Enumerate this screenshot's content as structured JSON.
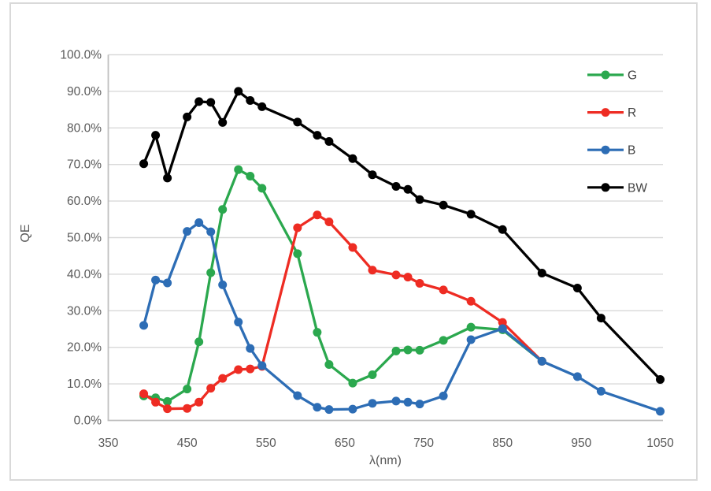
{
  "chart_data": {
    "type": "line",
    "title": "",
    "xlabel": "λ(nm)",
    "ylabel": "QE",
    "grid": true,
    "legend_position": "top-right-vertical",
    "x_axis": {
      "min": 350,
      "max": 1053,
      "ticks": [
        350,
        450,
        550,
        650,
        750,
        850,
        950,
        1050
      ],
      "tick_labels": [
        "350",
        "450",
        "550",
        "650",
        "750",
        "850",
        "950",
        "1050"
      ]
    },
    "y_axis": {
      "min": 0,
      "max": 100,
      "ticks": [
        0,
        10,
        20,
        30,
        40,
        50,
        60,
        70,
        80,
        90,
        100
      ],
      "tick_labels": [
        "0.0%",
        "10.0%",
        "20.0%",
        "30.0%",
        "40.0%",
        "50.0%",
        "60.0%",
        "70.0%",
        "80.0%",
        "90.0%",
        "100.0%"
      ]
    },
    "series": [
      {
        "name": "G",
        "color": "#2BA84E",
        "x": [
          395,
          410,
          425,
          450,
          465,
          480,
          495,
          515,
          530,
          545,
          590,
          615,
          630,
          660,
          685,
          715,
          730,
          745,
          775,
          810,
          850,
          900
        ],
        "values": [
          6.7,
          6.2,
          5.2,
          8.6,
          21.5,
          40.4,
          57.7,
          68.6,
          66.8,
          63.5,
          45.6,
          24.1,
          15.3,
          10.2,
          12.5,
          19.0,
          19.3,
          19.2,
          21.9,
          25.5,
          24.8,
          16.2
        ]
      },
      {
        "name": "R",
        "color": "#EE2C23",
        "x": [
          395,
          410,
          425,
          450,
          465,
          480,
          495,
          515,
          530,
          545,
          590,
          615,
          630,
          660,
          685,
          715,
          730,
          745,
          775,
          810,
          850,
          900
        ],
        "values": [
          7.3,
          5.0,
          3.2,
          3.3,
          5.0,
          8.8,
          11.5,
          13.9,
          14.1,
          14.8,
          52.7,
          56.2,
          54.3,
          47.3,
          41.1,
          39.8,
          39.2,
          37.5,
          35.7,
          32.6,
          26.8,
          16.2
        ]
      },
      {
        "name": "B",
        "color": "#2D6DB5",
        "x": [
          395,
          410,
          425,
          450,
          465,
          480,
          495,
          515,
          530,
          545,
          590,
          615,
          630,
          660,
          685,
          715,
          730,
          745,
          775,
          810,
          850,
          900,
          945,
          975,
          1050
        ],
        "values": [
          26.0,
          38.4,
          37.6,
          51.7,
          54.1,
          51.6,
          37.1,
          26.9,
          19.7,
          15.0,
          6.8,
          3.6,
          3.0,
          3.1,
          4.7,
          5.3,
          5.0,
          4.5,
          6.7,
          22.1,
          25.1,
          16.2,
          12.0,
          8.0,
          2.5
        ]
      },
      {
        "name": "BW",
        "color": "#000000",
        "x": [
          395,
          410,
          425,
          450,
          465,
          480,
          495,
          515,
          530,
          545,
          590,
          615,
          630,
          660,
          685,
          715,
          730,
          745,
          775,
          810,
          850,
          900,
          945,
          975,
          1050
        ],
        "values": [
          70.2,
          78.0,
          66.3,
          83.0,
          87.2,
          87.0,
          81.5,
          90.0,
          87.5,
          85.8,
          81.6,
          78.0,
          76.3,
          71.6,
          67.2,
          64.0,
          63.2,
          60.4,
          58.9,
          56.4,
          52.2,
          40.3,
          36.2,
          28.0,
          11.2
        ]
      }
    ]
  },
  "styles": {
    "grid_color": "#d9d9d9",
    "axis_line_color": "#bfbfbf",
    "tick_text_color": "#595959",
    "legend_text_color": "#404040",
    "frame_border_color": "#d9d9d9"
  }
}
